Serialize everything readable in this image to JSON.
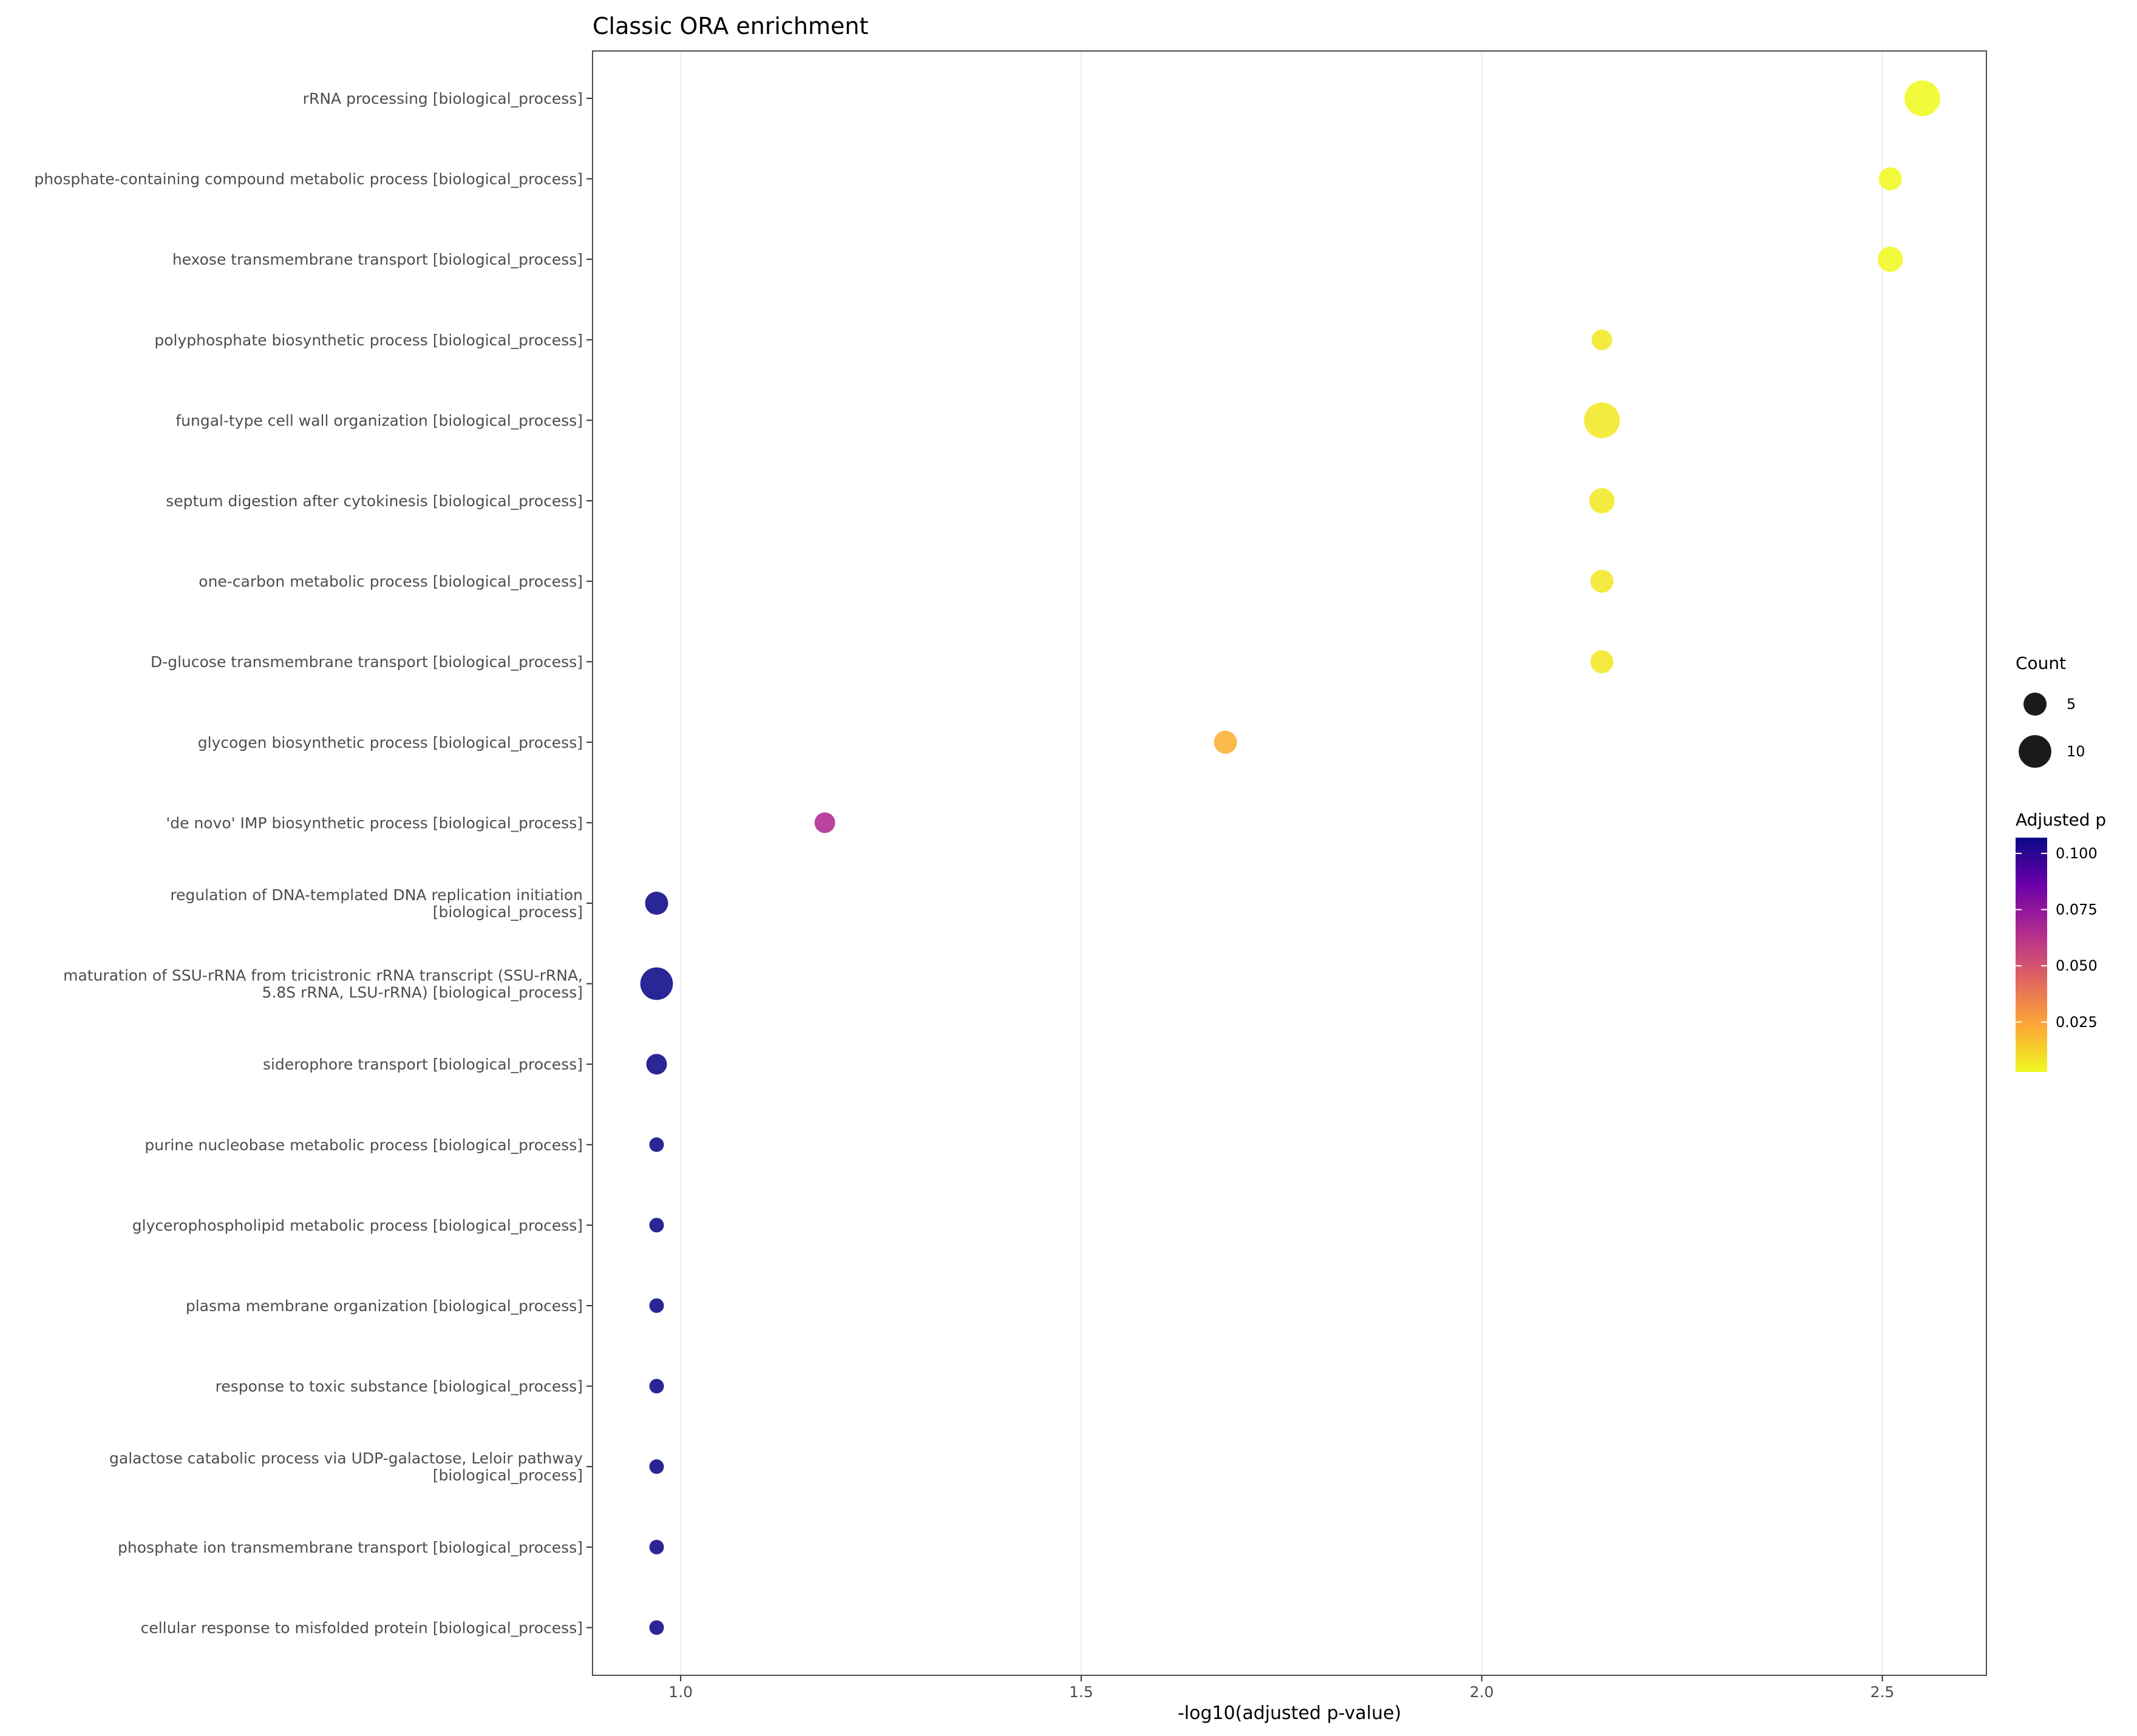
{
  "chart_data": {
    "type": "scatter",
    "title": "Classic ORA enrichment",
    "xlabel": "-log10(adjusted p-value)",
    "ylabel": "",
    "xlim": [
      0.89,
      2.63
    ],
    "x_ticks": [
      1.0,
      1.5,
      2.0,
      2.5
    ],
    "x_tick_labels": [
      "1.0",
      "1.5",
      "2.0",
      "2.5"
    ],
    "grid": "vertical major lines",
    "legend_position": "right",
    "categories": [
      "rRNA processing [biological_process]",
      "phosphate-containing compound metabolic process [biological_process]",
      "hexose transmembrane transport [biological_process]",
      "polyphosphate biosynthetic process [biological_process]",
      "fungal-type cell wall organization [biological_process]",
      "septum digestion after cytokinesis [biological_process]",
      "one-carbon metabolic process [biological_process]",
      "D-glucose transmembrane transport [biological_process]",
      "glycogen biosynthetic process [biological_process]",
      "'de novo' IMP biosynthetic process [biological_process]",
      "regulation of DNA-templated DNA replication initiation\n[biological_process]",
      "maturation of SSU-rRNA from tricistronic rRNA transcript (SSU-rRNA,\n5.8S rRNA, LSU-rRNA) [biological_process]",
      "siderophore transport [biological_process]",
      "purine nucleobase metabolic process [biological_process]",
      "glycerophospholipid metabolic process [biological_process]",
      "plasma membrane organization [biological_process]",
      "response to toxic substance [biological_process]",
      "galactose catabolic process via UDP-galactose, Leloir pathway\n[biological_process]",
      "phosphate ion transmembrane transport [biological_process]",
      "cellular response to misfolded protein [biological_process]"
    ],
    "x": [
      2.55,
      2.51,
      2.51,
      2.15,
      2.15,
      2.15,
      2.15,
      2.15,
      1.68,
      1.18,
      0.97,
      0.97,
      0.97,
      0.97,
      0.97,
      0.97,
      0.97,
      0.97,
      0.97,
      0.97
    ],
    "count": [
      12,
      5,
      6,
      4,
      12,
      6,
      5,
      5,
      5,
      4,
      5,
      10,
      4,
      2,
      2,
      2,
      2,
      2,
      2,
      2
    ],
    "adjusted_p": [
      0.0028,
      0.0031,
      0.0031,
      0.0071,
      0.0071,
      0.0071,
      0.0071,
      0.0071,
      0.021,
      0.066,
      0.107,
      0.107,
      0.107,
      0.107,
      0.107,
      0.107,
      0.107,
      0.107,
      0.107,
      0.107
    ],
    "size_legend": {
      "title": "Count",
      "values": [
        5,
        10
      ],
      "labels": [
        "5",
        "10"
      ],
      "color": "#1a1a1a"
    },
    "color_legend": {
      "title": "Adjusted p",
      "ticks": [
        0.025,
        0.05,
        0.075,
        0.1
      ],
      "labels": [
        "0.025",
        "0.050",
        "0.075",
        "0.100"
      ],
      "range": [
        0.0028,
        0.107
      ],
      "palette": [
        "#f0f921",
        "#fca636",
        "#e16462",
        "#b12a90",
        "#6a00a8",
        "#0d0887"
      ]
    }
  }
}
